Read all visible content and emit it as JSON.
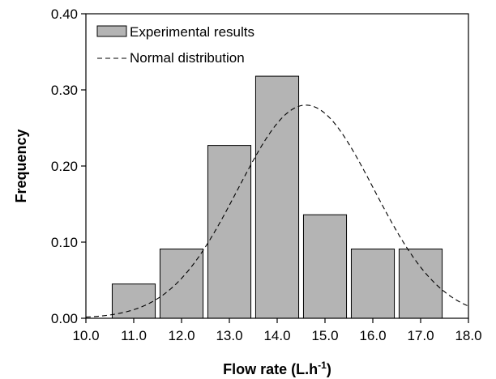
{
  "chart_data": {
    "type": "bar",
    "xlabel": "Flow rate (L.h",
    "xlabel_sup": "-1",
    "xlabel_close": ")",
    "ylabel": "Frequency",
    "xlim": [
      10.0,
      18.0
    ],
    "ylim": [
      0.0,
      0.4
    ],
    "x_ticks": [
      "10.0",
      "11.0",
      "12.0",
      "13.0",
      "14.0",
      "15.0",
      "16.0",
      "17.0",
      "18.0"
    ],
    "y_ticks": [
      "0.00",
      "0.10",
      "0.20",
      "0.30",
      "0.40"
    ],
    "bar_centers": [
      11.0,
      12.0,
      13.0,
      14.0,
      15.0,
      16.0,
      17.0
    ],
    "bar_width": 0.9,
    "series": [
      {
        "name": "Experimental results",
        "type": "bar",
        "values": [
          0.045,
          0.091,
          0.227,
          0.318,
          0.136,
          0.091,
          0.091
        ]
      },
      {
        "name": "Normal distribution",
        "type": "line",
        "style": "dashed",
        "mean": 14.6,
        "std": 1.42,
        "peak": 0.28
      }
    ],
    "legend_position": "top-left",
    "colors": {
      "bar_fill": "#b4b4b4",
      "bar_stroke": "#000000",
      "line": "#000000"
    },
    "grid": false
  }
}
